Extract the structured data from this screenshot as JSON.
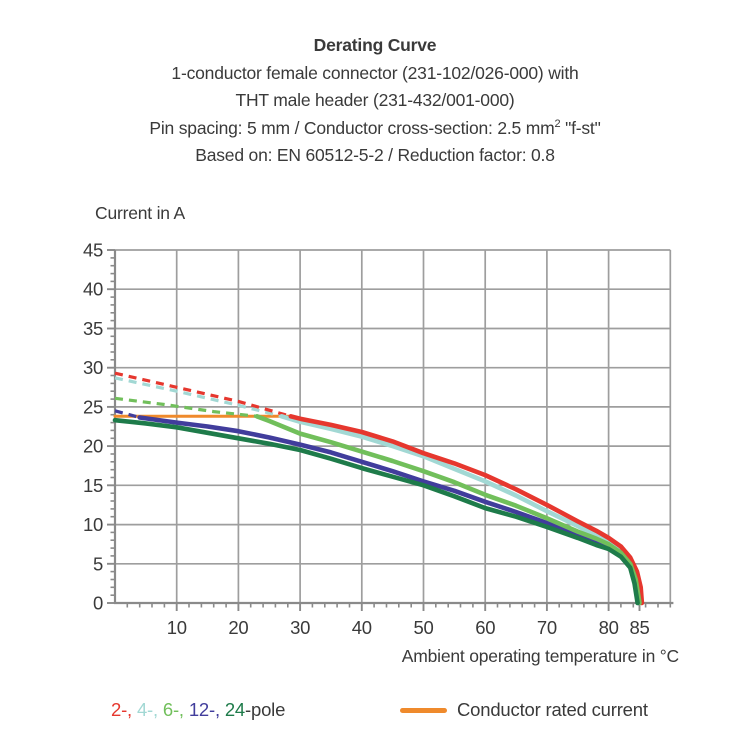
{
  "header": {
    "line1": "Derating Curve",
    "line2": "1-conductor female connector (231-102/026-000) with",
    "line3": "THT male header (231-432/001-000)",
    "line4_pre": "Pin spacing: 5 mm / Conductor cross-section: 2.5 mm",
    "line4_sup": "2",
    "line4_post": " \"f-st\"",
    "line5": "Based on: EN 60512-5-2 / Reduction factor: 0.8"
  },
  "legend": {
    "poles": [
      {
        "name": "2-pole",
        "text": "2-, ",
        "color": "#e6372e"
      },
      {
        "name": "4-pole",
        "text": "4-, ",
        "color": "#a2d8d4"
      },
      {
        "name": "6-pole",
        "text": "6-, ",
        "color": "#71bf5b"
      },
      {
        "name": "12-pole",
        "text": "12-, ",
        "color": "#413d9c"
      },
      {
        "name": "24-pole",
        "text": "24",
        "color": "#1e7b4a"
      }
    ],
    "pole_suffix": "-pole",
    "pole_suffix_color": "#3a3a3a",
    "conductor_label": "Conductor rated current",
    "conductor_color": "#ef8a2c"
  },
  "chart_data": {
    "type": "line",
    "title": "Derating Curve",
    "xlabel": "Ambient operating temperature in °C",
    "ylabel": "Current in A",
    "xlim": [
      0,
      90
    ],
    "ylim": [
      0,
      45
    ],
    "x_ticks_major": [
      10,
      20,
      30,
      40,
      50,
      60,
      70,
      80,
      85
    ],
    "x_minor_step": 2,
    "y_ticks": [
      0,
      5,
      10,
      15,
      20,
      25,
      30,
      35,
      40,
      45
    ],
    "y_minor_step": 1,
    "grid": {
      "x_lines": [
        10,
        20,
        30,
        40,
        50,
        60,
        70,
        80
      ],
      "y_lines": [
        5,
        10,
        15,
        20,
        25,
        30,
        35,
        40,
        45
      ],
      "frame_right": 90,
      "on": true
    },
    "grid_color": "#9e9e9e",
    "axis_color": "#8a8a8a",
    "legend_position": "bottom",
    "draw_order": [
      1,
      0,
      3,
      2,
      4
    ],
    "rated_current": {
      "label": "Conductor rated current",
      "value": 23.8,
      "x_start": 0,
      "x_end": 28.2,
      "color": "#ef8a2c"
    },
    "series": [
      {
        "name": "2-pole",
        "color": "#e6372e",
        "dashed": [
          [
            0,
            29.3
          ],
          [
            10,
            27.5
          ],
          [
            20,
            25.7
          ],
          [
            28.5,
            23.8
          ]
        ],
        "solid": [
          [
            28.5,
            23.8
          ],
          [
            30,
            23.5
          ],
          [
            35,
            22.7
          ],
          [
            40,
            21.8
          ],
          [
            45,
            20.6
          ],
          [
            50,
            19.1
          ],
          [
            55,
            17.8
          ],
          [
            60,
            16.3
          ],
          [
            65,
            14.5
          ],
          [
            70,
            12.5
          ],
          [
            75,
            10.4
          ],
          [
            78,
            9.2
          ],
          [
            80,
            8.3
          ],
          [
            82,
            7.2
          ],
          [
            83.5,
            5.8
          ],
          [
            84.6,
            4.0
          ],
          [
            85.2,
            2.0
          ],
          [
            85.4,
            0
          ]
        ]
      },
      {
        "name": "4-pole",
        "color": "#a2d8d4",
        "dashed": [
          [
            0,
            28.7
          ],
          [
            10,
            27.0
          ],
          [
            20,
            25.2
          ],
          [
            27,
            23.8
          ]
        ],
        "solid": [
          [
            27,
            23.8
          ],
          [
            30,
            23.1
          ],
          [
            35,
            22.2
          ],
          [
            40,
            21.2
          ],
          [
            45,
            20.0
          ],
          [
            50,
            18.7
          ],
          [
            55,
            17.1
          ],
          [
            60,
            15.5
          ],
          [
            65,
            13.7
          ],
          [
            70,
            11.7
          ],
          [
            75,
            9.8
          ],
          [
            78,
            8.6
          ],
          [
            80,
            7.8
          ],
          [
            82,
            6.7
          ],
          [
            83.5,
            5.3
          ],
          [
            84.5,
            3.5
          ],
          [
            85,
            1.8
          ],
          [
            85.2,
            0
          ]
        ]
      },
      {
        "name": "6-pole",
        "color": "#71bf5b",
        "dashed": [
          [
            0,
            26.1
          ],
          [
            8,
            25.3
          ],
          [
            16,
            24.4
          ],
          [
            23,
            23.8
          ]
        ],
        "solid": [
          [
            23,
            23.8
          ],
          [
            25,
            23.2
          ],
          [
            30,
            21.6
          ],
          [
            35,
            20.5
          ],
          [
            40,
            19.3
          ],
          [
            45,
            18.1
          ],
          [
            50,
            16.8
          ],
          [
            55,
            15.4
          ],
          [
            60,
            13.8
          ],
          [
            65,
            12.4
          ],
          [
            70,
            10.8
          ],
          [
            75,
            9.1
          ],
          [
            78,
            8.2
          ],
          [
            80,
            7.5
          ],
          [
            82,
            6.4
          ],
          [
            83.5,
            5.0
          ],
          [
            84.4,
            3.0
          ],
          [
            85,
            0
          ]
        ]
      },
      {
        "name": "12-pole",
        "color": "#413d9c",
        "dashed": [
          [
            0,
            24.5
          ],
          [
            4,
            23.65
          ]
        ],
        "solid": [
          [
            4,
            23.65
          ],
          [
            10,
            23.0
          ],
          [
            15,
            22.5
          ],
          [
            20,
            21.9
          ],
          [
            25,
            21.1
          ],
          [
            30,
            20.2
          ],
          [
            35,
            19.2
          ],
          [
            40,
            18.0
          ],
          [
            45,
            16.8
          ],
          [
            50,
            15.5
          ],
          [
            55,
            14.3
          ],
          [
            60,
            12.9
          ],
          [
            65,
            11.6
          ],
          [
            70,
            10.2
          ],
          [
            75,
            8.7
          ],
          [
            78,
            7.8
          ],
          [
            80,
            7.2
          ],
          [
            82,
            6.2
          ],
          [
            83.5,
            4.8
          ],
          [
            84.3,
            2.8
          ],
          [
            84.9,
            0
          ]
        ]
      },
      {
        "name": "24-pole",
        "color": "#1e7b4a",
        "dashed": [],
        "solid": [
          [
            0,
            23.3
          ],
          [
            5,
            22.9
          ],
          [
            10,
            22.4
          ],
          [
            15,
            21.7
          ],
          [
            20,
            21.0
          ],
          [
            25,
            20.3
          ],
          [
            30,
            19.5
          ],
          [
            35,
            18.4
          ],
          [
            40,
            17.2
          ],
          [
            45,
            16.1
          ],
          [
            50,
            15.0
          ],
          [
            55,
            13.6
          ],
          [
            60,
            12.1
          ],
          [
            65,
            11.0
          ],
          [
            70,
            9.7
          ],
          [
            75,
            8.3
          ],
          [
            78,
            7.4
          ],
          [
            80,
            6.9
          ],
          [
            82,
            5.9
          ],
          [
            83.5,
            4.5
          ],
          [
            84.2,
            2.5
          ],
          [
            84.7,
            0
          ]
        ]
      }
    ]
  }
}
